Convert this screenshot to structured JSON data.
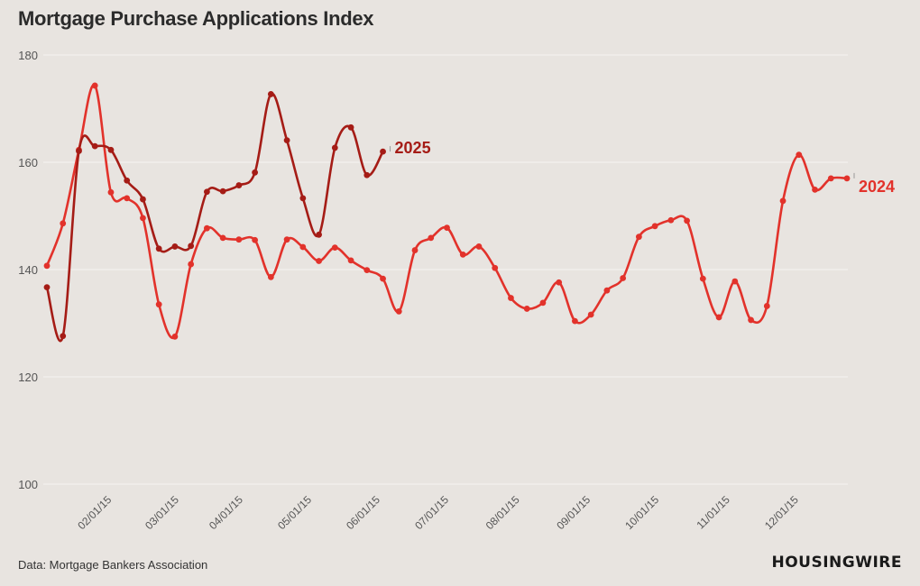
{
  "title": "Mortgage Purchase Applications Index",
  "source": "Data: Mortgage Bankers Association",
  "logo": "HOUSINGWIRE",
  "chart_data": {
    "type": "line",
    "title": "Mortgage Purchase Applications Index",
    "xlabel": "",
    "ylabel": "",
    "ylim": [
      100,
      180
    ],
    "yticks": [
      100,
      120,
      140,
      160,
      180
    ],
    "x_tick_labels": [
      "02/01/15",
      "03/01/15",
      "04/01/15",
      "05/01/15",
      "06/01/15",
      "07/01/15",
      "08/01/15",
      "09/01/15",
      "10/01/15",
      "11/01/15",
      "12/01/15"
    ],
    "x_tick_weeks": [
      4.07,
      8.28,
      12.28,
      16.57,
      20.85,
      25.14,
      29.57,
      34.0,
      38.28,
      42.71,
      47.0
    ],
    "grid": true,
    "series": [
      {
        "name": "2024",
        "color": "#e2322b",
        "values": [
          140.7,
          148.6,
          162.3,
          174.3,
          154.4,
          153.3,
          149.6,
          133.5,
          127.5,
          141.0,
          147.7,
          145.9,
          145.6,
          145.5,
          138.6,
          145.6,
          144.2,
          141.6,
          144.1,
          141.7,
          139.9,
          138.3,
          132.2,
          143.6,
          145.9,
          147.8,
          142.8,
          144.3,
          140.3,
          134.7,
          132.7,
          133.8,
          137.6,
          130.4,
          131.6,
          136.1,
          138.4,
          146.1,
          148.1,
          149.2,
          149.1,
          138.3,
          131.1,
          137.8,
          130.6,
          133.2,
          152.8,
          161.4,
          154.9,
          157.0,
          157.0
        ]
      },
      {
        "name": "2025",
        "color": "#a51c16",
        "values": [
          136.7,
          127.6,
          162.1,
          163.0,
          162.3,
          156.6,
          153.1,
          143.9,
          144.3,
          144.4,
          154.5,
          154.6,
          155.7,
          158.1,
          172.7,
          164.1,
          153.3,
          146.5,
          162.7,
          166.5,
          157.6,
          162.0
        ]
      }
    ]
  }
}
